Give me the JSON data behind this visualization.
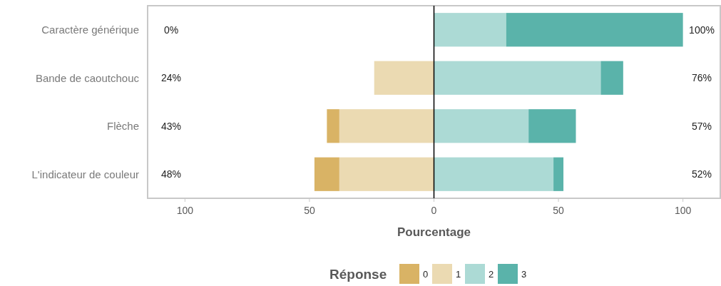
{
  "chart_data": {
    "type": "bar",
    "orientation": "horizontal",
    "stacked": true,
    "xlabel": "Pourcentage",
    "legend_title": "Réponse",
    "legend": "bottom",
    "grid": false,
    "categories": [
      "Caractère générique",
      "Bande de caoutchouc",
      "Flèche",
      "L'indicateur de couleur"
    ],
    "xlim": [
      -115,
      115
    ],
    "xticks": [
      {
        "value": -100,
        "label": "100"
      },
      {
        "value": -50,
        "label": "50"
      },
      0,
      50,
      100
    ],
    "series": [
      {
        "name": "1",
        "color": "#ebdab2",
        "values": [
          0,
          -24,
          -38,
          -38
        ]
      },
      {
        "name": "0",
        "color": "#d9b365",
        "values": [
          0,
          0,
          -5,
          -10
        ]
      },
      {
        "name": "2",
        "color": "#acdad5",
        "values": [
          29,
          67,
          38,
          48
        ]
      },
      {
        "name": "3",
        "color": "#5ab3aa",
        "values": [
          71,
          9,
          19,
          4
        ]
      }
    ],
    "ref_lines": [
      {
        "axis": "x",
        "value": 0,
        "color": "#000000"
      }
    ],
    "annotations": [
      "0%",
      "24%",
      "43%",
      "48%",
      "100%",
      "76%",
      "57%",
      "52%"
    ]
  }
}
